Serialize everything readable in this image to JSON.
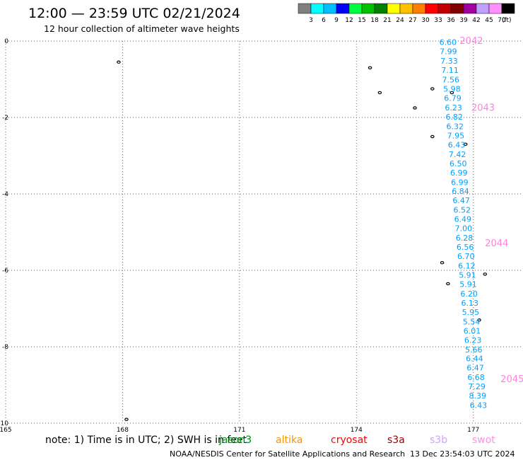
{
  "header": {
    "title": "12:00 — 23:59 UTC 02/21/2024",
    "subtitle": "12 hour collection of altimeter wave heights"
  },
  "colorbar": {
    "labels": [
      "3",
      "6",
      "9",
      "12",
      "15",
      "18",
      "21",
      "24",
      "27",
      "30",
      "33",
      "36",
      "39",
      "42",
      "45",
      "70"
    ],
    "unit": "(ft)",
    "colors": [
      "#808080",
      "#00ffff",
      "#00bfff",
      "#0000ff",
      "#00ff40",
      "#00c000",
      "#008000",
      "#ffff00",
      "#ffc000",
      "#ff8000",
      "#ff0000",
      "#c00000",
      "#800000",
      "#a000a0",
      "#c0a0ff",
      "#ff90ff",
      "#000000"
    ]
  },
  "chart_data": {
    "type": "scatter",
    "title": "12:00 — 23:59 UTC 02/21/2024",
    "subtitle": "12 hour collection of altimeter wave heights",
    "xlabel": "",
    "ylabel": "",
    "xlim": [
      165,
      179
    ],
    "ylim": [
      -10,
      0
    ],
    "x_ticks": [
      "165",
      "168",
      "171",
      "174",
      "177"
    ],
    "y_ticks": [
      "0",
      "-2",
      "-4",
      "-6",
      "-8",
      "-10"
    ],
    "grid": true,
    "units": "ft",
    "series": [
      {
        "name": "jason3",
        "color": "#00a0ff",
        "points": [
          {
            "lon": 176.35,
            "lat": -0.03,
            "v": "6.60"
          },
          {
            "lon": 176.36,
            "lat": -0.27,
            "v": "7.99"
          },
          {
            "lon": 176.38,
            "lat": -0.52,
            "v": "7.33"
          },
          {
            "lon": 176.4,
            "lat": -0.76,
            "v": "7.11"
          },
          {
            "lon": 176.42,
            "lat": -1.01,
            "v": "7.56"
          },
          {
            "lon": 176.45,
            "lat": -1.25,
            "v": "5.98"
          },
          {
            "lon": 176.47,
            "lat": -1.49,
            "v": "6.79"
          },
          {
            "lon": 176.49,
            "lat": -1.74,
            "v": "6.23"
          },
          {
            "lon": 176.51,
            "lat": -1.98,
            "v": "6.82"
          },
          {
            "lon": 176.53,
            "lat": -2.23,
            "v": "6.32"
          },
          {
            "lon": 176.55,
            "lat": -2.47,
            "v": "7.95"
          },
          {
            "lon": 176.57,
            "lat": -2.71,
            "v": "6.43"
          },
          {
            "lon": 176.59,
            "lat": -2.96,
            "v": "7.42"
          },
          {
            "lon": 176.61,
            "lat": -3.2,
            "v": "6.50"
          },
          {
            "lon": 176.63,
            "lat": -3.44,
            "v": "6.99"
          },
          {
            "lon": 176.65,
            "lat": -3.69,
            "v": "6.99"
          },
          {
            "lon": 176.67,
            "lat": -3.93,
            "v": "6.84"
          },
          {
            "lon": 176.69,
            "lat": -4.17,
            "v": "6.47"
          },
          {
            "lon": 176.71,
            "lat": -4.42,
            "v": "6.52"
          },
          {
            "lon": 176.73,
            "lat": -4.66,
            "v": "6.49"
          },
          {
            "lon": 176.75,
            "lat": -4.9,
            "v": "7.00"
          },
          {
            "lon": 176.77,
            "lat": -5.15,
            "v": "6.28"
          },
          {
            "lon": 176.79,
            "lat": -5.39,
            "v": "6.56"
          },
          {
            "lon": 176.81,
            "lat": -5.63,
            "v": "6.70"
          },
          {
            "lon": 176.83,
            "lat": -5.88,
            "v": "6.12"
          },
          {
            "lon": 176.85,
            "lat": -6.12,
            "v": "5.91"
          },
          {
            "lon": 176.87,
            "lat": -6.36,
            "v": "5.91"
          },
          {
            "lon": 176.89,
            "lat": -6.61,
            "v": "6.20"
          },
          {
            "lon": 176.91,
            "lat": -6.85,
            "v": "6.13"
          },
          {
            "lon": 176.93,
            "lat": -7.09,
            "v": "5.95"
          },
          {
            "lon": 176.95,
            "lat": -7.34,
            "v": "5.54"
          },
          {
            "lon": 176.97,
            "lat": -7.58,
            "v": "6.01"
          },
          {
            "lon": 176.99,
            "lat": -7.82,
            "v": "6.23"
          },
          {
            "lon": 177.01,
            "lat": -8.07,
            "v": "5.66"
          },
          {
            "lon": 177.03,
            "lat": -8.31,
            "v": "6.44"
          },
          {
            "lon": 177.05,
            "lat": -8.55,
            "v": "6.47"
          },
          {
            "lon": 177.07,
            "lat": -8.8,
            "v": "6.68"
          },
          {
            "lon": 177.09,
            "lat": -9.04,
            "v": "7.29"
          },
          {
            "lon": 177.11,
            "lat": -9.28,
            "v": "8.39"
          },
          {
            "lon": 177.13,
            "lat": -9.53,
            "v": "6.43"
          }
        ]
      }
    ],
    "time_marks": [
      {
        "lon": 176.95,
        "lat": 0.0,
        "label": "2042"
      },
      {
        "lon": 177.25,
        "lat": -1.75,
        "label": "2043"
      },
      {
        "lon": 177.6,
        "lat": -5.3,
        "label": "2044"
      },
      {
        "lon": 178.0,
        "lat": -8.85,
        "label": "2045"
      }
    ],
    "islands": [
      {
        "lon": 167.9,
        "lat": -0.55
      },
      {
        "lon": 174.35,
        "lat": -0.7
      },
      {
        "lon": 174.6,
        "lat": -1.35
      },
      {
        "lon": 175.5,
        "lat": -1.75
      },
      {
        "lon": 175.95,
        "lat": -1.25
      },
      {
        "lon": 176.45,
        "lat": -1.35
      },
      {
        "lon": 176.8,
        "lat": -2.7
      },
      {
        "lon": 175.95,
        "lat": -2.5
      },
      {
        "lon": 176.2,
        "lat": -5.8
      },
      {
        "lon": 176.35,
        "lat": -6.35
      },
      {
        "lon": 177.15,
        "lat": -7.3
      },
      {
        "lon": 178.5,
        "lat": -8.0
      },
      {
        "lon": 179.0,
        "lat": -7.5
      },
      {
        "lon": 168.1,
        "lat": -9.9
      },
      {
        "lon": 177.3,
        "lat": -6.1
      }
    ]
  },
  "legend": {
    "items": [
      {
        "label": "jason3",
        "color": "#2db0ff"
      },
      {
        "label": "jason3",
        "color": "#00a000"
      },
      {
        "label": "altika",
        "color": "#ff9000"
      },
      {
        "label": "cryosat",
        "color": "#ff0000"
      },
      {
        "label": "s3a",
        "color": "#a00000"
      },
      {
        "label": "s3b",
        "color": "#d0a0ff"
      },
      {
        "label": "swot",
        "color": "#ff90e0"
      }
    ]
  },
  "footer": {
    "note": "note:  1) Time is in UTC; 2) SWH is in feet",
    "credit": "NOAA/NESDIS Center for Satellite Applications and Research",
    "timestamp": "13 Dec 23:54:03 UTC 2024"
  }
}
